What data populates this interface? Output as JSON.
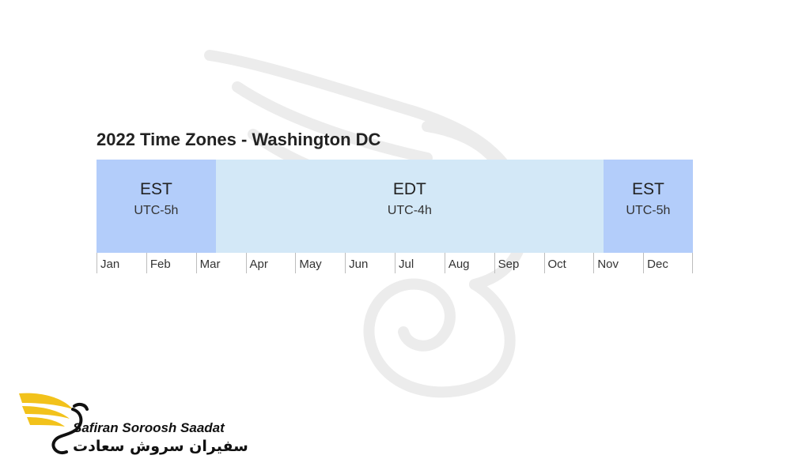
{
  "chart_data": {
    "type": "table",
    "title": "2022 Time Zones - Washington DC",
    "months": [
      "Jan",
      "Feb",
      "Mar",
      "Apr",
      "May",
      "Jun",
      "Jul",
      "Aug",
      "Sep",
      "Oct",
      "Nov",
      "Dec"
    ],
    "periods": [
      {
        "zone": "EST",
        "offset": "UTC-5h",
        "start_month": 0,
        "end_month": 2.4,
        "color": "#b3cdfa"
      },
      {
        "zone": "EDT",
        "offset": "UTC-4h",
        "start_month": 2.4,
        "end_month": 10.2,
        "color": "#d3e8f7"
      },
      {
        "zone": "EST",
        "offset": "UTC-5h",
        "start_month": 10.2,
        "end_month": 12,
        "color": "#b3cdfa"
      }
    ]
  },
  "logo": {
    "name_en": "Safiran Soroosh Saadat",
    "name_fa": "سفیران سروش سعادت",
    "accent": "#f2c21b"
  }
}
